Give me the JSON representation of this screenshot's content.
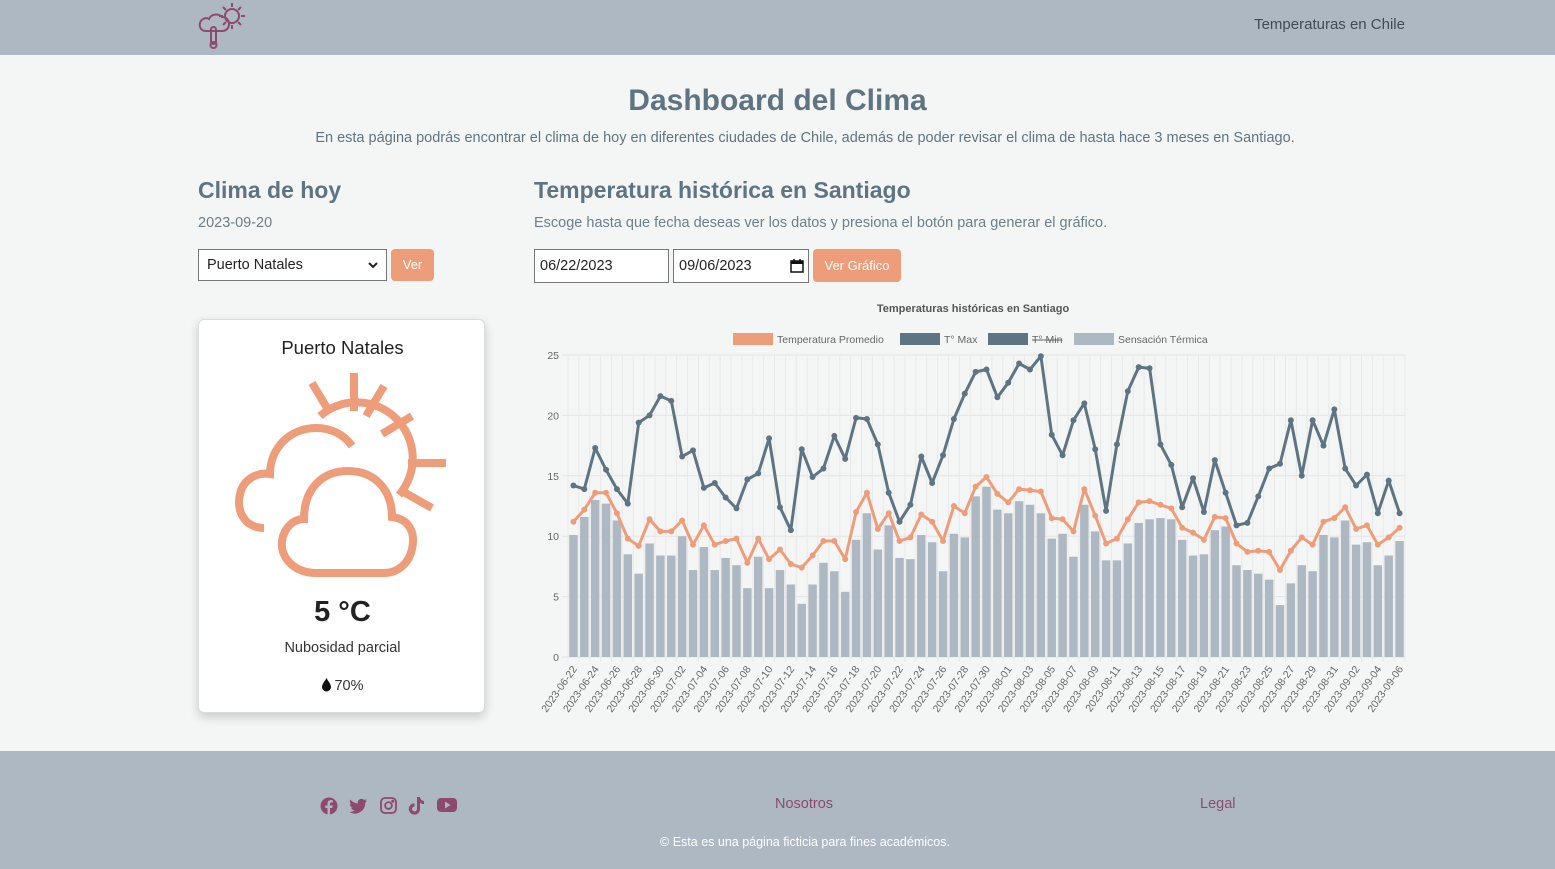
{
  "header": {
    "nav_title": "Temperaturas en Chile",
    "logo_icon": "weather-thermometer-logo-icon",
    "logo_color": "#8c4a6e"
  },
  "page": {
    "title": "Dashboard del Clima",
    "subtitle": "En esta página podrás encontrar el clima de hoy en diferentes ciudades de Chile, además de poder revisar el clima de hasta hace 3 meses en Santiago."
  },
  "today": {
    "title": "Clima de hoy",
    "date": "2023-09-20",
    "city_select": "Puerto Natales",
    "ver_button": "Ver",
    "card": {
      "city": "Puerto Natales",
      "icon": "partly-cloudy-icon",
      "temp": "5 °C",
      "description": "Nubosidad parcial",
      "humidity": "70%",
      "humidity_icon": "droplet-icon"
    }
  },
  "historic": {
    "title": "Temperatura histórica en Santiago",
    "instructions": "Escoge hasta que fecha deseas ver los datos y presiona el botón para generar el gráfico.",
    "start_date": "06/22/2023",
    "end_date": "09/06/2023",
    "button": "Ver Gráfico"
  },
  "colors": {
    "accent": "#ee9d7b",
    "max": "#5f7482",
    "sensation": "#aeb8c2",
    "footer_link": "#8c4a6e"
  },
  "chart_data": {
    "type": "bar",
    "title": "Temperaturas históricas en Santiago",
    "xlabel": "",
    "ylabel": "",
    "ylim": [
      0,
      25
    ],
    "y_ticks": [
      "0",
      "5",
      "10",
      "15",
      "20",
      "25"
    ],
    "grid": true,
    "legend_position": "top",
    "x_labels": [
      "2023-06-22",
      "2023-06-24",
      "2023-06-26",
      "2023-06-28",
      "2023-06-30",
      "2023-07-02",
      "2023-07-04",
      "2023-07-06",
      "2023-07-08",
      "2023-07-10",
      "2023-07-12",
      "2023-07-14",
      "2023-07-16",
      "2023-07-18",
      "2023-07-20",
      "2023-07-22",
      "2023-07-24",
      "2023-07-26",
      "2023-07-28",
      "2023-07-30",
      "2023-08-01",
      "2023-08-03",
      "2023-08-05",
      "2023-08-07",
      "2023-08-09",
      "2023-08-11",
      "2023-08-13",
      "2023-08-15",
      "2023-08-17",
      "2023-08-19",
      "2023-08-21",
      "2023-08-23",
      "2023-08-25",
      "2023-08-27",
      "2023-08-29",
      "2023-08-31",
      "2023-09-02",
      "2023-09-04",
      "2023-09-06"
    ],
    "series": [
      {
        "name": "Temperatura Promedio",
        "type": "line",
        "color": "#ee9d7b",
        "hidden": false,
        "values": [
          11.2,
          12.2,
          13.6,
          13.6,
          11.9,
          9.8,
          9.2,
          11.4,
          10.4,
          10.4,
          11.3,
          9.3,
          10.9,
          9.3,
          9.6,
          9.8,
          7.8,
          9.8,
          8.1,
          8.9,
          7.7,
          7.4,
          8.4,
          9.6,
          9.6,
          8.1,
          12.0,
          13.6,
          10.6,
          11.9,
          9.6,
          9.9,
          11.8,
          11.2,
          9.6,
          12.5,
          11.9,
          14.1,
          14.9,
          13.5,
          12.8,
          13.9,
          13.8,
          13.7,
          11.5,
          11.4,
          10.4,
          13.9,
          11.7,
          9.4,
          9.8,
          11.4,
          12.8,
          12.9,
          12.6,
          12.3,
          10.7,
          10.3,
          9.7,
          11.6,
          11.5,
          9.4,
          8.7,
          8.8,
          8.7,
          7.2,
          8.8,
          9.9,
          9.3,
          11.2,
          11.5,
          12.4,
          10.6,
          10.9,
          9.3,
          9.9,
          10.7
        ]
      },
      {
        "name": "T° Max",
        "type": "line",
        "color": "#5f7482",
        "hidden": false,
        "values": [
          14.2,
          13.9,
          17.3,
          15.5,
          13.9,
          12.7,
          19.4,
          20.0,
          21.6,
          21.2,
          16.6,
          17.1,
          14.0,
          14.4,
          13.2,
          12.3,
          14.7,
          15.2,
          18.1,
          12.4,
          10.5,
          17.2,
          14.9,
          15.6,
          18.3,
          16.4,
          19.8,
          19.7,
          17.6,
          13.6,
          11.2,
          12.6,
          16.6,
          14.4,
          16.7,
          19.7,
          21.8,
          23.6,
          23.8,
          21.5,
          22.7,
          24.3,
          23.8,
          24.9,
          18.4,
          16.7,
          19.6,
          21.0,
          17.2,
          12.1,
          17.6,
          22.0,
          24.0,
          23.9,
          17.6,
          15.9,
          12.4,
          14.8,
          12.0,
          16.3,
          13.6,
          10.9,
          11.1,
          13.3,
          15.6,
          16.0,
          19.6,
          15.0,
          19.6,
          17.5,
          20.5,
          15.6,
          14.2,
          15.1,
          11.9,
          14.6,
          11.9
        ]
      },
      {
        "name": "T° Min",
        "type": "line",
        "color": "#5f7482",
        "hidden": true,
        "values": []
      },
      {
        "name": "Sensación Térmica",
        "type": "bar",
        "color": "#aeb8c2",
        "hidden": false,
        "values": [
          10.1,
          11.6,
          13.0,
          12.7,
          11.3,
          8.5,
          6.9,
          9.4,
          8.4,
          8.4,
          10.0,
          7.2,
          9.1,
          7.2,
          8.2,
          7.6,
          5.7,
          8.3,
          5.7,
          7.2,
          6.0,
          4.4,
          6.0,
          7.8,
          7.1,
          5.4,
          9.7,
          11.9,
          8.9,
          10.9,
          8.2,
          8.1,
          10.1,
          9.5,
          7.1,
          10.2,
          9.9,
          13.3,
          14.1,
          12.2,
          11.9,
          12.9,
          12.6,
          11.9,
          9.8,
          10.2,
          8.3,
          12.6,
          10.4,
          8.0,
          8.0,
          9.4,
          11.1,
          11.4,
          11.5,
          11.4,
          9.7,
          8.4,
          8.5,
          10.5,
          10.8,
          7.6,
          7.2,
          6.9,
          6.4,
          4.3,
          6.1,
          7.6,
          7.1,
          10.1,
          9.9,
          11.3,
          9.3,
          9.5,
          7.6,
          8.4,
          9.6
        ]
      }
    ]
  },
  "footer": {
    "social_icons": [
      "facebook-icon",
      "twitter-icon",
      "instagram-icon",
      "tiktok-icon",
      "youtube-icon"
    ],
    "nosotros": "Nosotros",
    "legal": "Legal",
    "copyright": "© Esta es una página ficticia para fines académicos."
  }
}
